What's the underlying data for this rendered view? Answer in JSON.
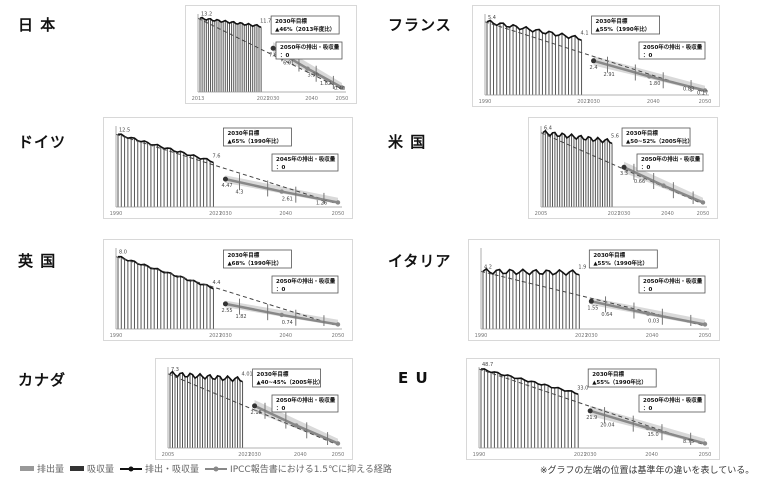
{
  "legend": {
    "emission": "排出量",
    "removal": "吸収量",
    "net": "排出・吸収量",
    "ipcc": "IPCC報告書における1.5℃に抑える経路"
  },
  "note": "※グラフの左端の位置は基準年の違いを表している。",
  "colors": {
    "bars": "#555555",
    "line": "#111111",
    "path": "#888888",
    "band": "#cfcfcf"
  },
  "chart_data": [
    {
      "type": "bar",
      "country": "日 本",
      "series": [
        {
          "name": "排出・吸収量",
          "start": 13.2,
          "end": 11.7,
          "wiggle": 0.2
        }
      ],
      "target": {
        "value": "7.6",
        "text": [
          "2030年目標",
          "▲46%（2013年度比）"
        ]
      },
      "net_zero": {
        "text": [
          "2050年の排出・吸収量",
          "：0"
        ]
      },
      "ylim": [
        0,
        14
      ],
      "labels": [
        "13.2",
        "11.7",
        "7.6",
        "6.01",
        "3.90",
        "1.82",
        "0.40"
      ],
      "xticks": [
        "2013",
        "2021",
        "2030",
        "2040",
        "2050"
      ]
    },
    {
      "type": "bar",
      "country": "フランス",
      "series": [
        {
          "name": "排出・吸収量",
          "start": 5.4,
          "end": 4.1,
          "wiggle": 0.15
        }
      ],
      "target": {
        "value": "2.4",
        "text": [
          "2030年目標",
          "▲55%（1990年比）"
        ]
      },
      "net_zero": {
        "text": [
          "2050年の排出・吸収量",
          "：0"
        ]
      },
      "ylim": [
        0,
        6
      ],
      "labels": [
        "5.4",
        "4.1",
        "2.4",
        "2.91",
        "1.80",
        "0.83",
        "0.17"
      ],
      "xticks": [
        "1990",
        "2021",
        "2030",
        "2040",
        "2050"
      ]
    },
    {
      "type": "bar",
      "country": "ドイツ",
      "series": [
        {
          "name": "排出・吸収量",
          "start": 12.5,
          "end": 7.6,
          "wiggle": 0.2
        }
      ],
      "target": {
        "value": "4.47",
        "text": [
          "2030年目標",
          "▲65%（1990年比）"
        ]
      },
      "net_zero": {
        "text": [
          "2045年の排出・吸収量",
          "：0"
        ]
      },
      "ylim": [
        0,
        14
      ],
      "labels": [
        "12.5",
        "7.6",
        "4.47",
        "4.3",
        "2.61",
        "1.26"
      ],
      "xticks": [
        "1990",
        "2021",
        "2030",
        "2040",
        "2050"
      ]
    },
    {
      "type": "bar",
      "country": "米 国",
      "series": [
        {
          "name": "排出・吸収量",
          "start": 6.4,
          "end": 5.6,
          "wiggle": 0.2
        }
      ],
      "target": {
        "value": "3.3",
        "text": [
          "2030年目標",
          "▲50~52%（2005年比）"
        ]
      },
      "net_zero": {
        "text": [
          "2050年の排出・吸収量",
          "：0"
        ]
      },
      "ylim": [
        0,
        7
      ],
      "labels": [
        "6.4",
        "5.6",
        "3.3",
        "0.66"
      ],
      "xticks": [
        "2005",
        "2021",
        "2030",
        "2040",
        "2050"
      ]
    },
    {
      "type": "bar",
      "country": "英 国",
      "series": [
        {
          "name": "排出・吸収量",
          "start": 8.0,
          "end": 4.4,
          "wiggle": 0.12
        }
      ],
      "target": {
        "value": "2.55",
        "text": [
          "2030年目標",
          "▲68%（1990年比）"
        ]
      },
      "net_zero": {
        "text": [
          "2050年の排出・吸収量",
          "：0"
        ]
      },
      "ylim": [
        0,
        9
      ],
      "labels": [
        "8.0",
        "4.4",
        "2.55",
        "1.82",
        "0.74"
      ],
      "xticks": [
        "1990",
        "2021",
        "2030",
        "2040",
        "2050"
      ]
    },
    {
      "type": "bar",
      "country": "イタリア",
      "series": [
        {
          "name": "排出・吸収量",
          "start": 4.2,
          "end": 4.1,
          "wiggle": 0.2
        }
      ],
      "target": {
        "value": "1.9",
        "text": [
          "2030年目標",
          "▲55%（1990年比）"
        ]
      },
      "net_zero": {
        "text": [
          "2050年の排出・吸収量",
          "：0"
        ]
      },
      "ylim": [
        0,
        6
      ],
      "labels": [
        "4.2",
        "1.9",
        "1.55",
        "0.64",
        "0.03"
      ],
      "xticks": [
        "1990",
        "2021",
        "2030",
        "2040",
        "2050"
      ]
    },
    {
      "type": "bar",
      "country": "カナダ",
      "series": [
        {
          "name": "排出・吸収量",
          "start": 7.3,
          "end": 6.7,
          "wiggle": 0.25
        }
      ],
      "target": {
        "value": "4.01",
        "text": [
          "2030年目標",
          "▲40~45%（2005年比）"
        ]
      },
      "net_zero": {
        "text": [
          "2050年の排出・吸収量",
          "：0"
        ]
      },
      "ylim": [
        0,
        8
      ],
      "labels": [
        "7.3",
        "4.01",
        "2.18"
      ],
      "xticks": [
        "2005",
        "2021",
        "2030",
        "2040",
        "2050"
      ]
    },
    {
      "type": "bar",
      "country": "E U",
      "series": [
        {
          "name": "排出・吸収量",
          "start": 48.7,
          "end": 33.0,
          "wiggle": 0.6
        }
      ],
      "target": {
        "value": "21.9",
        "text": [
          "2030年目標",
          "▲55%（1990年比）"
        ]
      },
      "net_zero": {
        "text": [
          "2050年の排出・吸収量",
          "：0"
        ]
      },
      "ylim": [
        0,
        50
      ],
      "labels": [
        "48.7",
        "33.0",
        "21.9",
        "20.04",
        "15.0",
        "8.75"
      ],
      "xticks": [
        "1990",
        "2021",
        "2030",
        "2040",
        "2050"
      ]
    }
  ]
}
